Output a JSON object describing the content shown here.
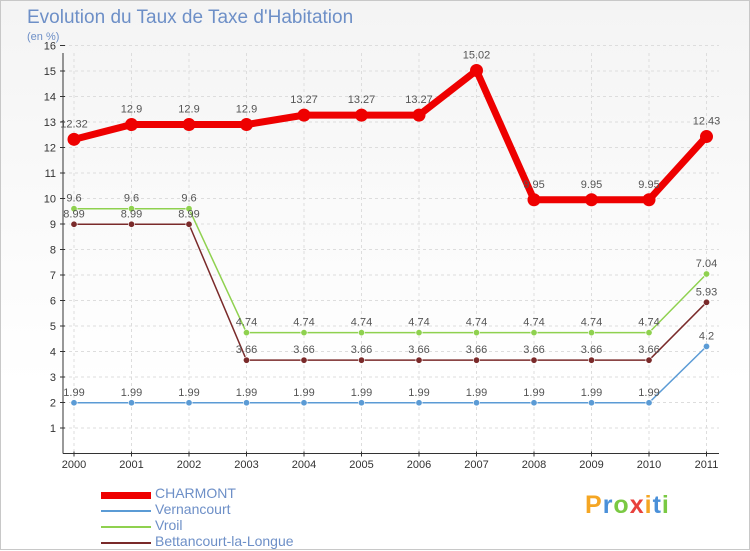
{
  "chart_data": {
    "type": "line",
    "title": "Evolution du Taux de Taxe d'Habitation",
    "subtitle": "(en %)",
    "xlabel": "",
    "ylabel": "",
    "categories": [
      "2000",
      "2001",
      "2002",
      "2003",
      "2004",
      "2005",
      "2006",
      "2007",
      "2008",
      "2009",
      "2010",
      "2011"
    ],
    "ylim": [
      0,
      16
    ],
    "yticks": [
      1,
      2,
      3,
      4,
      5,
      6,
      7,
      8,
      9,
      10,
      11,
      12,
      13,
      14,
      15,
      16
    ],
    "grid": true,
    "series": [
      {
        "name": "CHARMONT",
        "color": "#ee0000",
        "values": [
          12.32,
          12.9,
          12.9,
          12.9,
          13.27,
          13.27,
          13.27,
          15.02,
          9.95,
          9.95,
          9.95,
          12.43
        ],
        "labels": [
          "12.32",
          "12.9",
          "12.9",
          "12.9",
          "13.27",
          "13.27",
          "13.27",
          "15.02",
          "9.95",
          "9.95",
          "9.95",
          "12.43"
        ]
      },
      {
        "name": "Vernancourt",
        "color": "#5b9bd5",
        "values": [
          1.99,
          1.99,
          1.99,
          1.99,
          1.99,
          1.99,
          1.99,
          1.99,
          1.99,
          1.99,
          1.99,
          4.2
        ],
        "labels": [
          "1.99",
          "1.99",
          "1.99",
          "1.99",
          "1.99",
          "1.99",
          "1.99",
          "1.99",
          "1.99",
          "1.99",
          "1.99",
          "4.2"
        ]
      },
      {
        "name": "Vroil",
        "color": "#8fd14f",
        "values": [
          9.6,
          9.6,
          9.6,
          4.74,
          4.74,
          4.74,
          4.74,
          4.74,
          4.74,
          4.74,
          4.74,
          7.04
        ],
        "labels": [
          "9.6",
          "9.6",
          "9.6",
          "4.74",
          "4.74",
          "4.74",
          "4.74",
          "4.74",
          "4.74",
          "4.74",
          "4.74",
          "7.04"
        ]
      },
      {
        "name": "Bettancourt-la-Longue",
        "color": "#7a2a2a",
        "values": [
          8.99,
          8.99,
          8.99,
          3.66,
          3.66,
          3.66,
          3.66,
          3.66,
          3.66,
          3.66,
          3.66,
          5.93
        ],
        "labels": [
          "8.99",
          "8.99",
          "8.99",
          "3.66",
          "3.66",
          "3.66",
          "3.66",
          "3.66",
          "3.66",
          "3.66",
          "3.66",
          "5.93"
        ]
      }
    ],
    "legend": "bottom-left"
  },
  "brand": {
    "letters": [
      "P",
      "r",
      "o",
      "x",
      "i",
      "t",
      "i"
    ],
    "colors": [
      "#f5a623",
      "#4a90d9",
      "#7ac943",
      "#e8413c",
      "#f5a623",
      "#4a90d9",
      "#7ac943"
    ]
  }
}
